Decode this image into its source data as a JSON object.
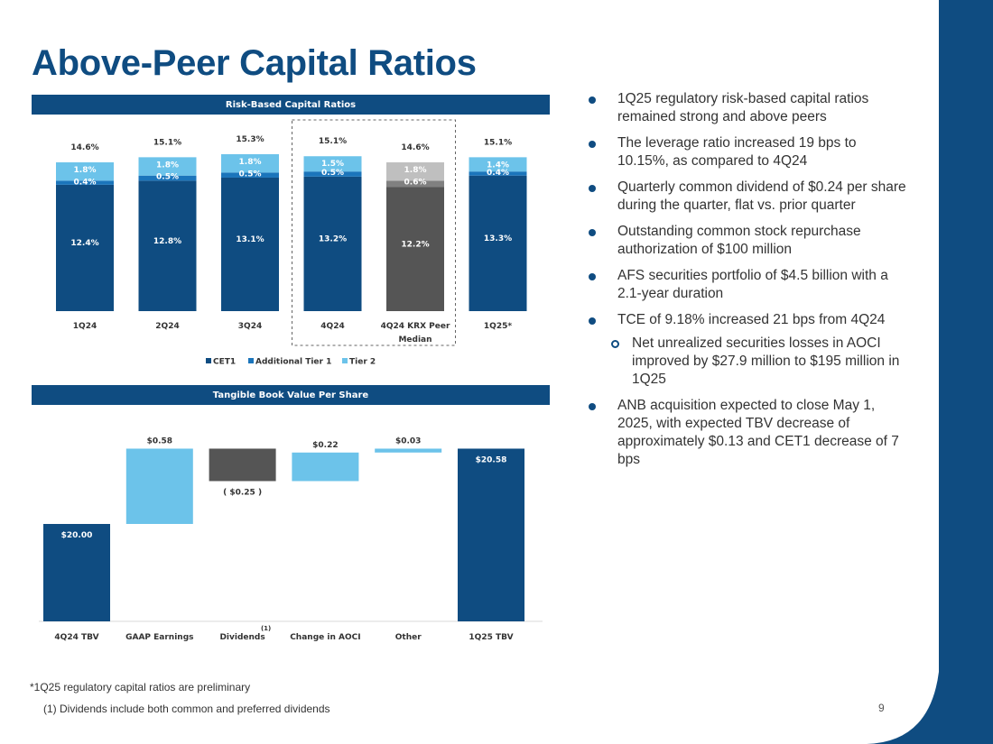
{
  "slide": {
    "title": "Above-Peer Capital Ratios",
    "page_number": "9",
    "footnotes": [
      "*1Q25 regulatory capital ratios are preliminary",
      "(1) Dividends include both common and preferred dividends"
    ]
  },
  "colors": {
    "brand": "#0f4c81",
    "cet1": "#0f4c81",
    "at1": "#1b75bb",
    "tier2": "#6cc3ea",
    "peer_cet1": "#555555",
    "peer_at1": "#808080",
    "peer_tier2": "#bfbfbf",
    "decrease": "#555555"
  },
  "bullets": [
    {
      "text": "1Q25 regulatory risk-based capital ratios remained strong and above peers",
      "level": 1
    },
    {
      "text": "The leverage ratio increased 19 bps to 10.15%, as compared to 4Q24",
      "level": 1
    },
    {
      "text": "Quarterly common dividend of $0.24 per share during the quarter, flat vs. prior quarter",
      "level": 1
    },
    {
      "text": "Outstanding common stock repurchase authorization of $100 million",
      "level": 1
    },
    {
      "text": "AFS securities portfolio of $4.5 billion with a 2.1-year duration",
      "level": 1
    },
    {
      "text": "TCE of 9.18% increased 21 bps from 4Q24",
      "level": 1
    },
    {
      "text": "Net unrealized securities losses in AOCI improved by $27.9 million to $195 million in 1Q25",
      "level": 2
    },
    {
      "text": "ANB acquisition expected to close May 1, 2025, with expected TBV decrease of approximately $0.13 and CET1 decrease of 7 bps",
      "level": 1
    }
  ],
  "chart_data": [
    {
      "type": "bar",
      "stacked": true,
      "title": "Risk-Based Capital Ratios",
      "categories": [
        "1Q24",
        "2Q24",
        "3Q24",
        "4Q24",
        "4Q24 KRX Peer Median",
        "1Q25*"
      ],
      "series": [
        {
          "name": "CET1",
          "values": [
            12.4,
            12.8,
            13.1,
            13.2,
            12.2,
            13.3
          ],
          "labels": [
            "12.4%",
            "12.8%",
            "13.1%",
            "13.2%",
            "12.2%",
            "13.3%"
          ]
        },
        {
          "name": "Additional Tier 1",
          "values": [
            0.4,
            0.5,
            0.5,
            0.5,
            0.6,
            0.4
          ],
          "labels": [
            "0.4%",
            "0.5%",
            "0.5%",
            "0.5%",
            "0.6%",
            "0.4%"
          ]
        },
        {
          "name": "Tier 2",
          "values": [
            1.8,
            1.8,
            1.8,
            1.5,
            1.8,
            1.4
          ],
          "labels": [
            "1.8%",
            "1.8%",
            "1.8%",
            "1.5%",
            "1.8%",
            "1.4%"
          ]
        }
      ],
      "totals": [
        "14.6%",
        "15.1%",
        "15.3%",
        "15.1%",
        "14.6%",
        "15.1%"
      ],
      "highlighted_categories": [
        "4Q24",
        "4Q24 KRX Peer Median"
      ],
      "legend_position": "bottom"
    },
    {
      "type": "waterfall",
      "title": "Tangible Book Value Per Share",
      "categories": [
        "4Q24 TBV",
        "GAAP Earnings",
        "Dividends",
        "Change in AOCI",
        "Other",
        "1Q25 TBV"
      ],
      "category_footnotes": [
        "",
        "",
        "(1)",
        "",
        "",
        ""
      ],
      "values": [
        20.0,
        0.58,
        -0.25,
        0.22,
        0.03,
        20.58
      ],
      "labels": [
        "$20.00",
        "$0.58",
        "( $0.25 )",
        "$0.22",
        "$0.03",
        "$20.58"
      ],
      "kinds": [
        "total",
        "delta",
        "delta",
        "delta",
        "delta",
        "total"
      ],
      "ylim": [
        19.25,
        20.75
      ]
    }
  ]
}
